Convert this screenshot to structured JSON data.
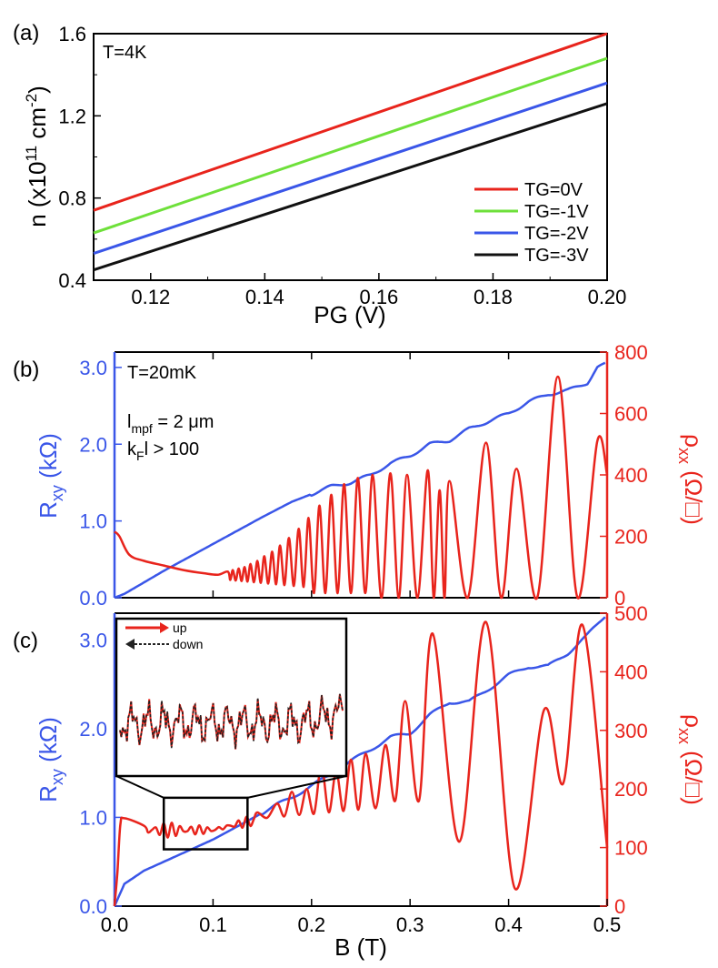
{
  "colors": {
    "red": "#e8241c",
    "green": "#6ee03a",
    "blue": "#3a56e8",
    "black": "#111111"
  },
  "chart_data": [
    {
      "panel": "(a)",
      "type": "line",
      "annotation": "T=4K",
      "xlabel": "PG (V)",
      "ylabel": "n (x10",
      "ylabel_exp1": "11",
      "ylabel_mid": " cm",
      "ylabel_exp2": "-2",
      "ylabel_close": ")",
      "xlim": [
        0.11,
        0.2
      ],
      "ylim": [
        0.4,
        1.6
      ],
      "xticks": [
        "0.12",
        "0.14",
        "0.16",
        "0.18",
        "0.20"
      ],
      "xtick_values": [
        0.12,
        0.14,
        0.16,
        0.18,
        0.2
      ],
      "yticks": [
        "0.4",
        "0.8",
        "1.2",
        "1.6"
      ],
      "ytick_values": [
        0.4,
        0.8,
        1.2,
        1.6
      ],
      "legend_position": "lower-right",
      "series": [
        {
          "name": "TG=0V",
          "color": "#e8241c",
          "x": [
            0.11,
            0.2
          ],
          "y": [
            0.74,
            1.6
          ]
        },
        {
          "name": "TG=-1V",
          "color": "#6ee03a",
          "x": [
            0.11,
            0.2
          ],
          "y": [
            0.63,
            1.48
          ]
        },
        {
          "name": "TG=-2V",
          "color": "#3a56e8",
          "x": [
            0.11,
            0.2
          ],
          "y": [
            0.53,
            1.36
          ]
        },
        {
          "name": "TG=-3V",
          "color": "#111111",
          "x": [
            0.11,
            0.2
          ],
          "y": [
            0.45,
            1.26
          ]
        }
      ]
    },
    {
      "panel": "(b)",
      "type": "line",
      "annotation_1": "T=20mK",
      "annotation_2_main": "l",
      "annotation_2_sub": "mpf",
      "annotation_2_rest": " = 2 μm",
      "annotation_3_main": "k",
      "annotation_3_sub": "F",
      "annotation_3_rest": "l > 100",
      "xlim": [
        0.0,
        0.5
      ],
      "ylim_left": [
        0.0,
        3.2
      ],
      "ylim_right": [
        0,
        800
      ],
      "yticks_left": [
        "0.0",
        "1.0",
        "2.0",
        "3.0"
      ],
      "ytick_left_values": [
        0.0,
        1.0,
        2.0,
        3.0
      ],
      "yticks_right": [
        "0",
        "200",
        "400",
        "600",
        "800"
      ],
      "ytick_right_values": [
        0,
        200,
        400,
        600,
        800
      ],
      "ylabel_left_main": "R",
      "ylabel_left_sub": "xy",
      "ylabel_left_rest": " (kΩ)",
      "ylabel_right_main": "ρ",
      "ylabel_right_sub": "xx",
      "ylabel_right_rest": " (Ω/□)",
      "series": [
        {
          "name": "Rxy",
          "axis": "left",
          "color": "#3a56e8",
          "x": [
            0.0,
            0.01,
            0.05,
            0.1,
            0.15,
            0.18,
            0.2,
            0.22,
            0.24,
            0.26,
            0.28,
            0.3,
            0.32,
            0.34,
            0.36,
            0.38,
            0.4,
            0.42,
            0.44,
            0.46,
            0.48,
            0.49,
            0.5
          ],
          "y": [
            0.0,
            0.05,
            0.35,
            0.7,
            1.05,
            1.25,
            1.35,
            1.45,
            1.5,
            1.6,
            1.75,
            1.85,
            2.0,
            2.05,
            2.2,
            2.3,
            2.4,
            2.55,
            2.65,
            2.7,
            2.8,
            3.0,
            3.05
          ]
        },
        {
          "name": "ρxx",
          "axis": "right",
          "color": "#e8241c",
          "peaks_x": [
            0.115,
            0.12,
            0.126,
            0.132,
            0.138,
            0.145,
            0.152,
            0.16,
            0.168,
            0.177,
            0.187,
            0.197,
            0.208,
            0.22,
            0.233,
            0.247,
            0.262,
            0.28,
            0.297,
            0.318,
            0.33,
            0.34,
            0.377,
            0.408,
            0.45,
            0.49
          ],
          "peaks_y": [
            85,
            90,
            95,
            100,
            110,
            120,
            135,
            150,
            170,
            195,
            225,
            260,
            300,
            335,
            370,
            390,
            400,
            405,
            400,
            415,
            350,
            380,
            505,
            420,
            720,
            510
          ]
        }
      ]
    },
    {
      "panel": "(c)",
      "type": "line",
      "xlabel": "B (T)",
      "xlim": [
        0.0,
        0.5
      ],
      "xticks": [
        "0.0",
        "0.1",
        "0.2",
        "0.3",
        "0.4",
        "0.5"
      ],
      "xtick_values": [
        0.0,
        0.1,
        0.2,
        0.3,
        0.4,
        0.5
      ],
      "ylim_left": [
        0.0,
        3.3
      ],
      "ylim_right": [
        0,
        500
      ],
      "yticks_left": [
        "0.0",
        "1.0",
        "2.0",
        "3.0"
      ],
      "ytick_left_values": [
        0.0,
        1.0,
        2.0,
        3.0
      ],
      "yticks_right": [
        "0",
        "100",
        "200",
        "300",
        "400",
        "500"
      ],
      "ytick_right_values": [
        0,
        100,
        200,
        300,
        400,
        500
      ],
      "ylabel_left_main": "R",
      "ylabel_left_sub": "xy",
      "ylabel_left_rest": " (kΩ)",
      "ylabel_right_main": "ρ",
      "ylabel_right_sub": "xx",
      "ylabel_right_rest": " (Ω/□)",
      "inset_legend": [
        "up",
        "down"
      ],
      "inset_region_x": [
        0.05,
        0.135
      ],
      "series": [
        {
          "name": "Rxy",
          "axis": "left",
          "color": "#3a56e8",
          "x": [
            0.0,
            0.01,
            0.03,
            0.06,
            0.1,
            0.15,
            0.2,
            0.25,
            0.28,
            0.3,
            0.32,
            0.34,
            0.36,
            0.38,
            0.4,
            0.42,
            0.44,
            0.46,
            0.48,
            0.5
          ],
          "y": [
            0.0,
            0.25,
            0.4,
            0.55,
            0.75,
            1.05,
            1.35,
            1.7,
            1.9,
            1.95,
            2.15,
            2.3,
            2.3,
            2.45,
            2.6,
            2.7,
            2.7,
            2.85,
            3.05,
            3.3
          ]
        },
        {
          "name": "ρxx",
          "axis": "right",
          "color": "#e8241c",
          "peaks_x": [
            0.02,
            0.145,
            0.165,
            0.18,
            0.195,
            0.21,
            0.225,
            0.24,
            0.255,
            0.275,
            0.295,
            0.323,
            0.377,
            0.436,
            0.475
          ],
          "peaks_y": [
            160,
            160,
            175,
            195,
            200,
            240,
            230,
            250,
            260,
            275,
            350,
            465,
            485,
            335,
            480
          ]
        }
      ]
    }
  ]
}
